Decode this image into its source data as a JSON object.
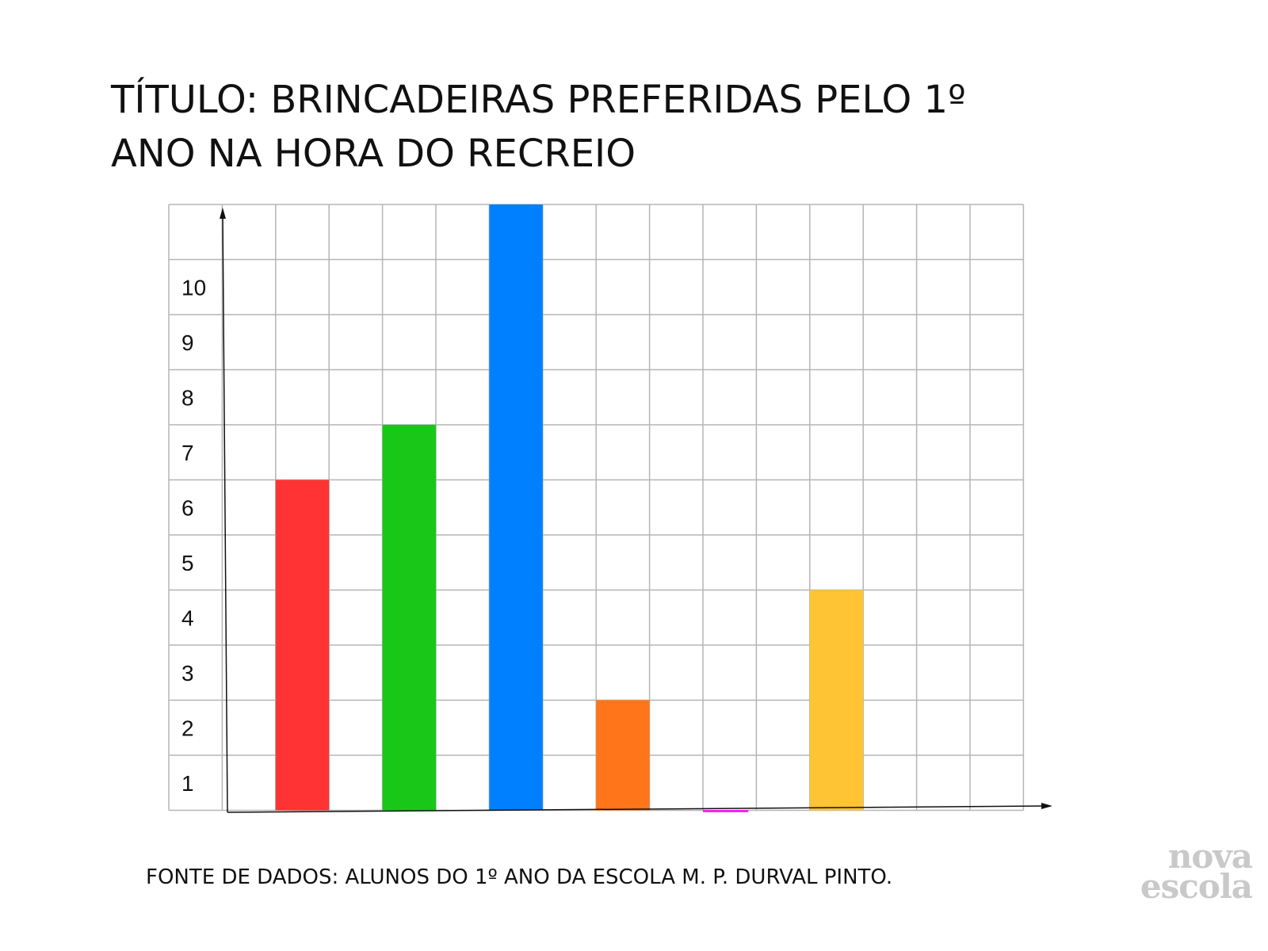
{
  "title": "TÍTULO: BRINCADEIRAS PREFERIDAS PELO 1º ANO NA HORA DO RECREIO",
  "source": "FONTE DE DADOS: ALUNOS DO 1º ANO DA ESCOLA M. P. DURVAL PINTO.",
  "logo": {
    "line1": "nova",
    "line2": "escola"
  },
  "chart_data": {
    "type": "bar",
    "title": "TÍTULO: BRINCADEIRAS PREFERIDAS PELO 1º ANO NA HORA DO RECREIO",
    "categories": [
      "",
      "",
      "",
      "",
      "",
      ""
    ],
    "values": [
      6,
      7,
      11,
      2,
      0,
      4
    ],
    "colors": [
      "#ff3333",
      "#19c719",
      "#0080ff",
      "#ff7519",
      "#ff00ff",
      "#ffc433"
    ],
    "yticks": [
      "1",
      "2",
      "3",
      "4",
      "5",
      "6",
      "7",
      "8",
      "9",
      "10"
    ],
    "ylim": [
      0,
      11
    ],
    "grid": true,
    "xlabel": "",
    "ylabel": ""
  }
}
